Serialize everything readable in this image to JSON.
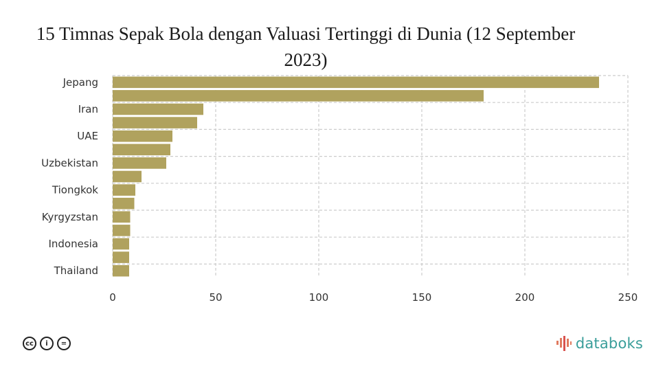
{
  "title": "15 Timnas Sepak Bola dengan Valuasi Tertinggi di Dunia (12 September 2023)",
  "chart_data": {
    "type": "bar",
    "orientation": "horizontal",
    "title": "15 Timnas Sepak Bola dengan Valuasi Tertinggi di Dunia (12 September 2023)",
    "categories": [
      "Jepang",
      "",
      "Iran",
      "",
      "UAE",
      "",
      "Uzbekistan",
      "",
      "Tiongkok",
      "",
      "Kyrgyzstan",
      "",
      "Indonesia",
      "",
      "Thailand"
    ],
    "values": [
      236,
      180,
      44,
      41,
      29,
      28,
      26,
      14,
      11,
      10.5,
      8.5,
      8.5,
      8,
      8,
      8
    ],
    "xlim": [
      0,
      250
    ],
    "xticks": [
      0,
      50,
      100,
      150,
      200,
      250
    ],
    "bar_color": "#b0a25e",
    "grid": true,
    "legend": "none"
  },
  "footer": {
    "license_icons": [
      "cc-icon",
      "by-icon",
      "nd-icon"
    ],
    "license_glyphs": [
      "cc",
      "i",
      "="
    ],
    "brand": "databoks",
    "brand_color": "#3a9e9a"
  }
}
